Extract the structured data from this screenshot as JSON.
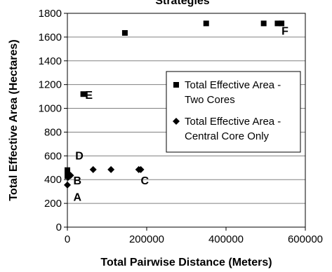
{
  "chart_data": {
    "type": "scatter",
    "title": "Strategies",
    "xlabel": "Total Pairwise Distance (Meters)",
    "ylabel": "Total Effective Area (Hectares)",
    "xlim": [
      0,
      600000
    ],
    "ylim": [
      0,
      1800
    ],
    "x_ticks": [
      0,
      200000,
      400000,
      600000
    ],
    "y_ticks": [
      0,
      200,
      400,
      600,
      800,
      1000,
      1200,
      1400,
      1600,
      1800
    ],
    "grid": "horizontal",
    "legend_position": "right",
    "series": [
      {
        "name": "Total Effective Area - Two Cores",
        "marker": "square",
        "color": "#000000",
        "points": [
          [
            0,
            430
          ],
          [
            0,
            460
          ],
          [
            0,
            480
          ],
          [
            2000,
            440
          ],
          [
            40000,
            1120
          ],
          [
            145000,
            1635
          ],
          [
            350000,
            1715
          ],
          [
            495000,
            1715
          ],
          [
            530000,
            1715
          ],
          [
            540000,
            1715
          ]
        ]
      },
      {
        "name": "Total Effective Area - Central Core Only",
        "marker": "diamond",
        "color": "#000000",
        "points": [
          [
            0,
            355
          ],
          [
            2000,
            420
          ],
          [
            8000,
            435
          ],
          [
            65000,
            485
          ],
          [
            110000,
            485
          ],
          [
            180000,
            485
          ],
          [
            185000,
            485
          ]
        ]
      }
    ],
    "annotations": [
      {
        "text": "A",
        "x": 15000,
        "y": 220
      },
      {
        "text": "B",
        "x": 15000,
        "y": 360
      },
      {
        "text": "C",
        "x": 185000,
        "y": 360
      },
      {
        "text": "D",
        "x": 20000,
        "y": 570
      },
      {
        "text": "E",
        "x": 45000,
        "y": 1080
      },
      {
        "text": "F",
        "x": 540000,
        "y": 1620
      }
    ]
  }
}
